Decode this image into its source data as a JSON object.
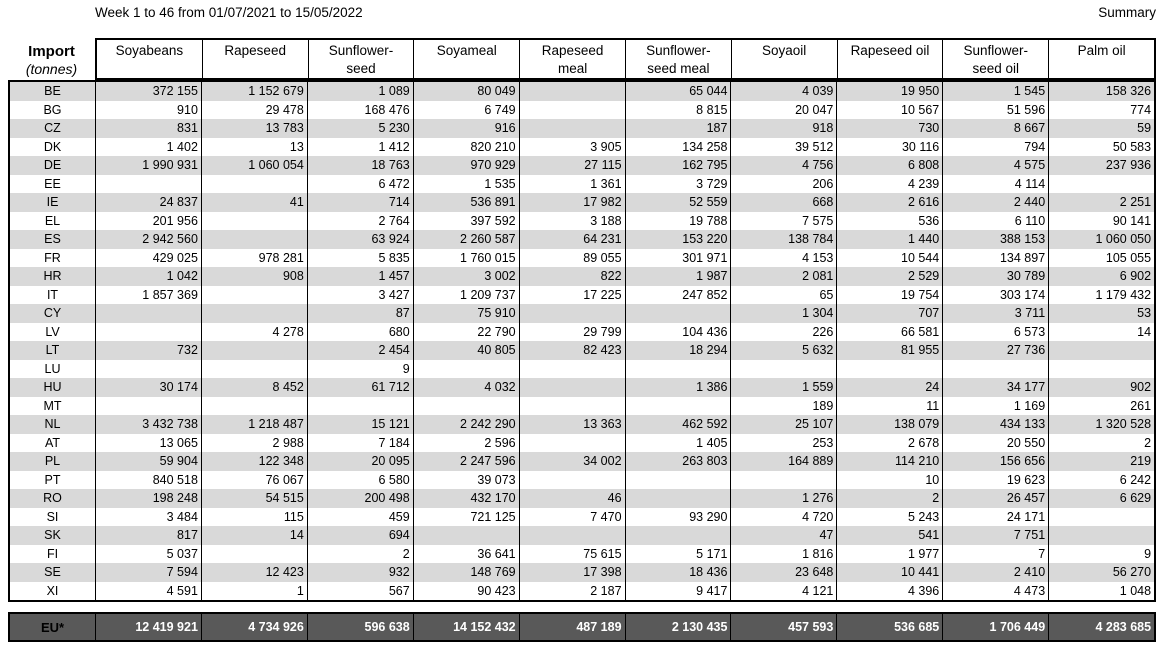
{
  "header": {
    "title": "Week 1 to 46 from 01/07/2021 to 15/05/2022",
    "summary_label": "Summary"
  },
  "colors": {
    "stripe": "#d9d9d9",
    "eu_row_bg": "#595959",
    "border": "#000000"
  },
  "table": {
    "corner": {
      "label": "Import",
      "unit": "(tonnes)"
    },
    "columns": [
      "Soyabeans",
      "Rapeseed",
      "Sunflower-\nseed",
      "Soyameal",
      "Rapeseed\nmeal",
      "Sunflower-\nseed meal",
      "Soyaoil",
      "Rapeseed oil",
      "Sunflower-\nseed oil",
      "Palm oil"
    ],
    "rows": [
      {
        "code": "BE",
        "values": [
          "372 155",
          "1 152 679",
          "1 089",
          "80 049",
          "",
          "65 044",
          "4 039",
          "19 950",
          "1 545",
          "158 326"
        ]
      },
      {
        "code": "BG",
        "values": [
          "910",
          "29 478",
          "168 476",
          "6 749",
          "",
          "8 815",
          "20 047",
          "10 567",
          "51 596",
          "774"
        ]
      },
      {
        "code": "CZ",
        "values": [
          "831",
          "13 783",
          "5 230",
          "916",
          "",
          "187",
          "918",
          "730",
          "8 667",
          "59"
        ]
      },
      {
        "code": "DK",
        "values": [
          "1 402",
          "13",
          "1 412",
          "820 210",
          "3 905",
          "134 258",
          "39 512",
          "30 116",
          "794",
          "50 583"
        ]
      },
      {
        "code": "DE",
        "values": [
          "1 990 931",
          "1 060 054",
          "18 763",
          "970 929",
          "27 115",
          "162 795",
          "4 756",
          "6 808",
          "4 575",
          "237 936"
        ]
      },
      {
        "code": "EE",
        "values": [
          "",
          "",
          "6 472",
          "1 535",
          "1 361",
          "3 729",
          "206",
          "4 239",
          "4 114",
          ""
        ]
      },
      {
        "code": "IE",
        "values": [
          "24 837",
          "41",
          "714",
          "536 891",
          "17 982",
          "52 559",
          "668",
          "2 616",
          "2 440",
          "2 251"
        ]
      },
      {
        "code": "EL",
        "values": [
          "201 956",
          "",
          "2 764",
          "397 592",
          "3 188",
          "19 788",
          "7 575",
          "536",
          "6 110",
          "90 141"
        ]
      },
      {
        "code": "ES",
        "values": [
          "2 942 560",
          "",
          "63 924",
          "2 260 587",
          "64 231",
          "153 220",
          "138 784",
          "1 440",
          "388 153",
          "1 060 050"
        ]
      },
      {
        "code": "FR",
        "values": [
          "429 025",
          "978 281",
          "5 835",
          "1 760 015",
          "89 055",
          "301 971",
          "4 153",
          "10 544",
          "134 897",
          "105 055"
        ]
      },
      {
        "code": "HR",
        "values": [
          "1 042",
          "908",
          "1 457",
          "3 002",
          "822",
          "1 987",
          "2 081",
          "2 529",
          "30 789",
          "6 902"
        ]
      },
      {
        "code": "IT",
        "values": [
          "1 857 369",
          "",
          "3 427",
          "1 209 737",
          "17 225",
          "247 852",
          "65",
          "19 754",
          "303 174",
          "1 179 432"
        ]
      },
      {
        "code": "CY",
        "values": [
          "",
          "",
          "87",
          "75 910",
          "",
          "",
          "1 304",
          "707",
          "3 711",
          "53"
        ]
      },
      {
        "code": "LV",
        "values": [
          "",
          "4 278",
          "680",
          "22 790",
          "29 799",
          "104 436",
          "226",
          "66 581",
          "6 573",
          "14"
        ]
      },
      {
        "code": "LT",
        "values": [
          "732",
          "",
          "2 454",
          "40 805",
          "82 423",
          "18 294",
          "5 632",
          "81 955",
          "27 736",
          ""
        ]
      },
      {
        "code": "LU",
        "values": [
          "",
          "",
          "9",
          "",
          "",
          "",
          "",
          "",
          "",
          ""
        ]
      },
      {
        "code": "HU",
        "values": [
          "30 174",
          "8 452",
          "61 712",
          "4 032",
          "",
          "1 386",
          "1 559",
          "24",
          "34 177",
          "902"
        ]
      },
      {
        "code": "MT",
        "values": [
          "",
          "",
          "",
          "",
          "",
          "",
          "189",
          "11",
          "1 169",
          "261"
        ]
      },
      {
        "code": "NL",
        "values": [
          "3 432 738",
          "1 218 487",
          "15 121",
          "2 242 290",
          "13 363",
          "462 592",
          "25 107",
          "138 079",
          "434 133",
          "1 320 528"
        ]
      },
      {
        "code": "AT",
        "values": [
          "13 065",
          "2 988",
          "7 184",
          "2 596",
          "",
          "1 405",
          "253",
          "2 678",
          "20 550",
          "2"
        ]
      },
      {
        "code": "PL",
        "values": [
          "59 904",
          "122 348",
          "20 095",
          "2 247 596",
          "34 002",
          "263 803",
          "164 889",
          "114 210",
          "156 656",
          "219"
        ]
      },
      {
        "code": "PT",
        "values": [
          "840 518",
          "76 067",
          "6 580",
          "39 073",
          "",
          "",
          "",
          "10",
          "19 623",
          "6 242"
        ]
      },
      {
        "code": "RO",
        "values": [
          "198 248",
          "54 515",
          "200 498",
          "432 170",
          "46",
          "",
          "1 276",
          "2",
          "26 457",
          "6 629"
        ]
      },
      {
        "code": "SI",
        "values": [
          "3 484",
          "115",
          "459",
          "721 125",
          "7 470",
          "93 290",
          "4 720",
          "5 243",
          "24 171",
          ""
        ]
      },
      {
        "code": "SK",
        "values": [
          "817",
          "14",
          "694",
          "",
          "",
          "",
          "47",
          "541",
          "7 751",
          ""
        ]
      },
      {
        "code": "FI",
        "values": [
          "5 037",
          "",
          "2",
          "36 641",
          "75 615",
          "5 171",
          "1 816",
          "1 977",
          "7",
          "9"
        ]
      },
      {
        "code": "SE",
        "values": [
          "7 594",
          "12 423",
          "932",
          "148 769",
          "17 398",
          "18 436",
          "23 648",
          "10 441",
          "2 410",
          "56 270"
        ]
      },
      {
        "code": "XI",
        "values": [
          "4 591",
          "1",
          "567",
          "90 423",
          "2 187",
          "9 417",
          "4 121",
          "4 396",
          "4 473",
          "1 048"
        ]
      }
    ],
    "eu_row": {
      "label": "EU*",
      "values": [
        "12 419 921",
        "4 734 926",
        "596 638",
        "14 152 432",
        "487 189",
        "2 130 435",
        "457 593",
        "536 685",
        "1 706 449",
        "4 283 685"
      ]
    }
  }
}
